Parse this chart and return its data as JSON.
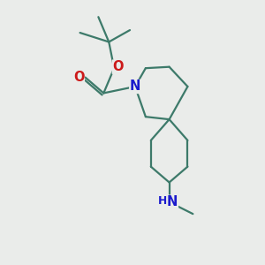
{
  "bg_color": "#eaecea",
  "bond_color": "#3d7a6a",
  "N_color": "#1a1acc",
  "O_color": "#cc1a1a",
  "bond_width": 1.6,
  "font_size_atom": 10.5,
  "fig_size": [
    3.0,
    3.0
  ],
  "dpi": 100,
  "xlim": [
    0,
    10
  ],
  "ylim": [
    0,
    10
  ]
}
